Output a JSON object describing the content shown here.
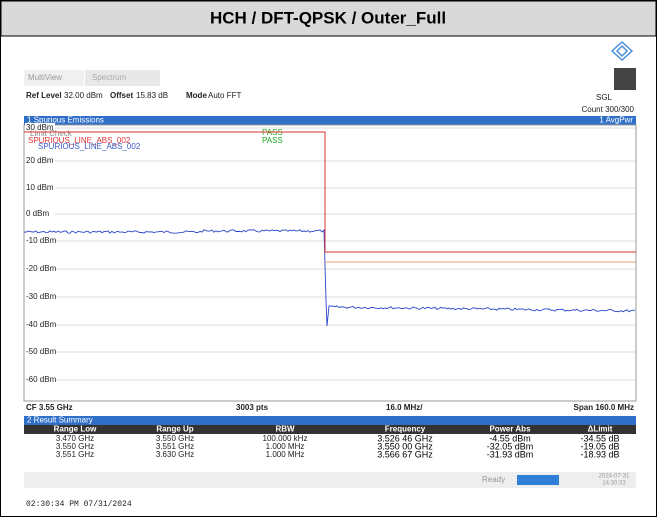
{
  "header": {
    "title": "HCH / DFT-QPSK / Outer_Full"
  },
  "tabs": [
    "MultiView",
    "Spectrum"
  ],
  "settings": {
    "ref_level_label": "Ref Level",
    "ref_level": "32.00 dBm",
    "offset_label": "Offset",
    "offset": "15.83 dB",
    "mode_label": "Mode",
    "mode": "Auto FFT",
    "sweep": "SGL",
    "count": "Count 300/300"
  },
  "window1": {
    "title": "1 Spurious Emissions",
    "trace": "1 AvgPwr",
    "limit_check": "Limit Check",
    "limit_line": "SPURIOUS_LINE_ABS_002",
    "pass": [
      "PASS",
      "PASS"
    ],
    "y_labels": [
      "30 dBm",
      "20 dBm",
      "10 dBm",
      "0 dBm",
      "-10 dBm",
      "-20 dBm",
      "-30 dBm",
      "-40 dBm",
      "-50 dBm",
      "-60 dBm"
    ],
    "footer": [
      "CF 3.55 GHz",
      "3003 pts",
      "16.0 MHz/",
      "Span 160.0 MHz"
    ]
  },
  "window2": {
    "title": "2 Result Summary",
    "columns": [
      "Range Low",
      "Range Up",
      "RBW",
      "Frequency",
      "Power Abs",
      "ΔLimit"
    ],
    "rows": [
      [
        "3.470 GHz",
        "3.550 GHz",
        "100.000 kHz",
        "3.526 46 GHz",
        "-4.55 dBm",
        "-34.55 dB"
      ],
      [
        "3.550 GHz",
        "3.551 GHz",
        "1.000 MHz",
        "3.550 00 GHz",
        "-32.05 dBm",
        "-19.05 dB"
      ],
      [
        "3.551 GHz",
        "3.630 GHz",
        "1.000 MHz",
        "3.566 67 GHz",
        "-31.93 dBm",
        "-18.93 dB"
      ]
    ]
  },
  "status": {
    "state": "Ready",
    "date": "2024-07-31",
    "time": "14:30:33"
  },
  "timestamp": "02:30:34 PM 07/31/2024"
}
